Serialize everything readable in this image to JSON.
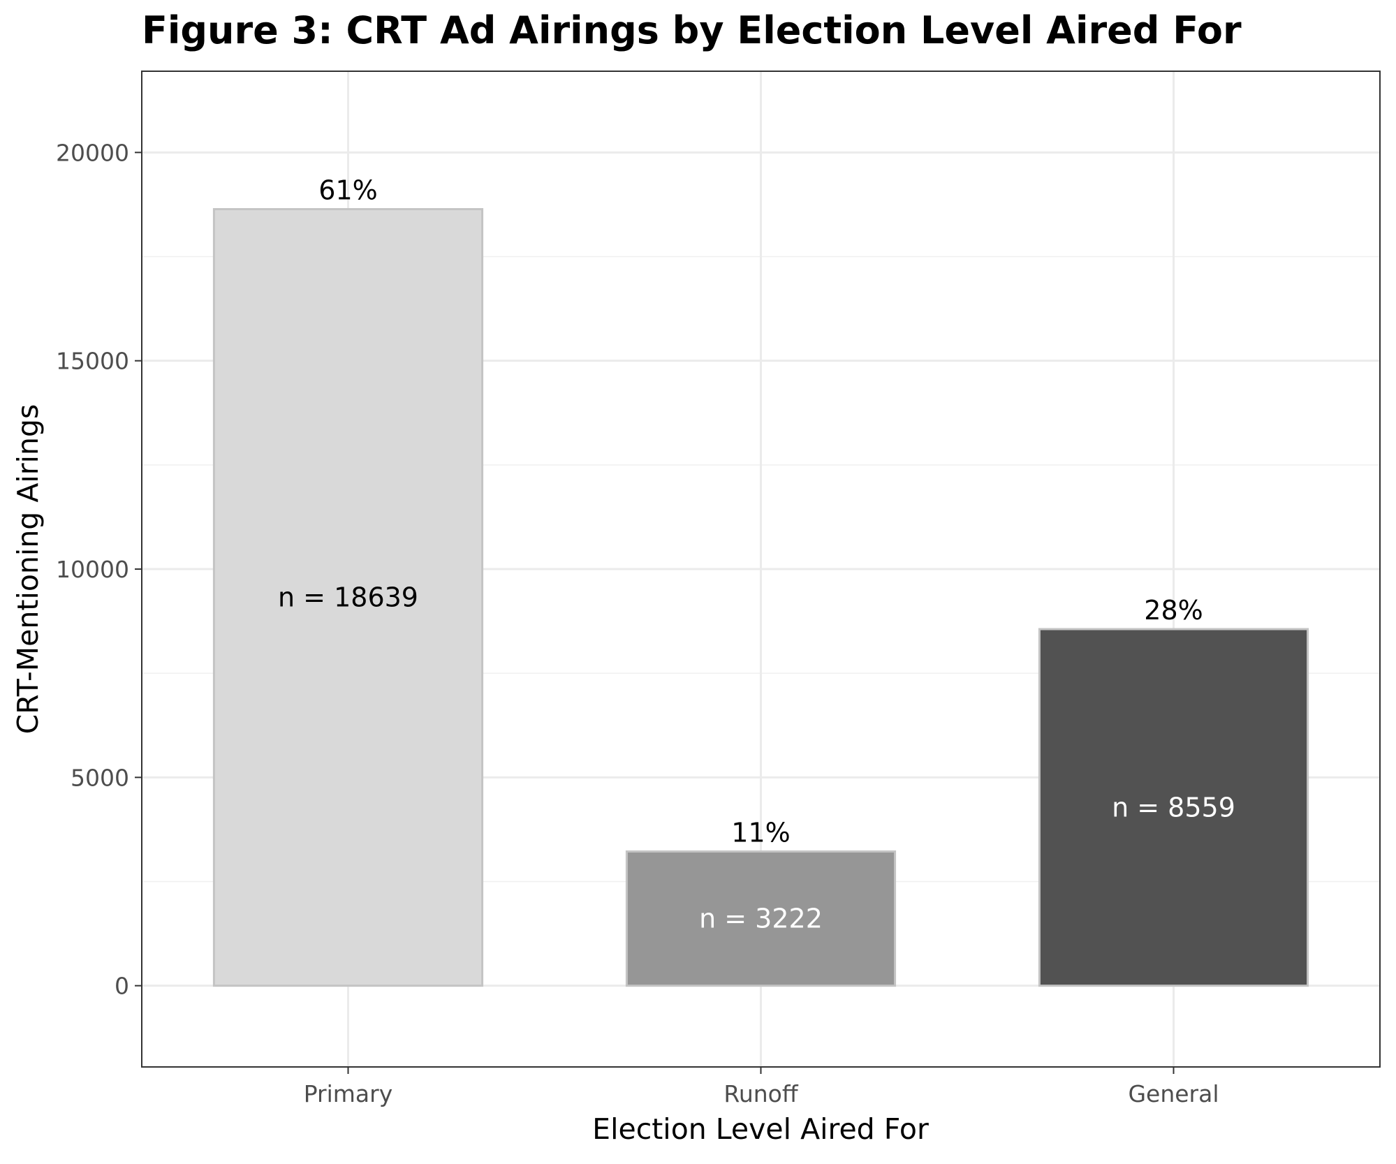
{
  "chart_data": {
    "type": "bar",
    "title": "Figure 3: CRT Ad Airings by Election Level Aired For",
    "xlabel": "Election Level Aired For",
    "ylabel": "CRT-Mentioning Airings",
    "categories": [
      "Primary",
      "Runoff",
      "General"
    ],
    "values": [
      18639,
      3222,
      8559
    ],
    "percent_labels": [
      "61%",
      "11%",
      "28%"
    ],
    "count_labels": [
      "n = 18639",
      "n = 3222",
      "n = 8559"
    ],
    "bar_colors": [
      "#d9d9d9",
      "#969696",
      "#525252"
    ],
    "count_label_colors": [
      "#000000",
      "#ffffff",
      "#ffffff"
    ],
    "ylim": [
      -1950,
      21950
    ],
    "y_ticks": [
      0,
      5000,
      10000,
      15000,
      20000
    ],
    "y_tick_labels": [
      "0",
      "5000",
      "10000",
      "15000",
      "20000"
    ],
    "grid": true,
    "legend": "none"
  }
}
